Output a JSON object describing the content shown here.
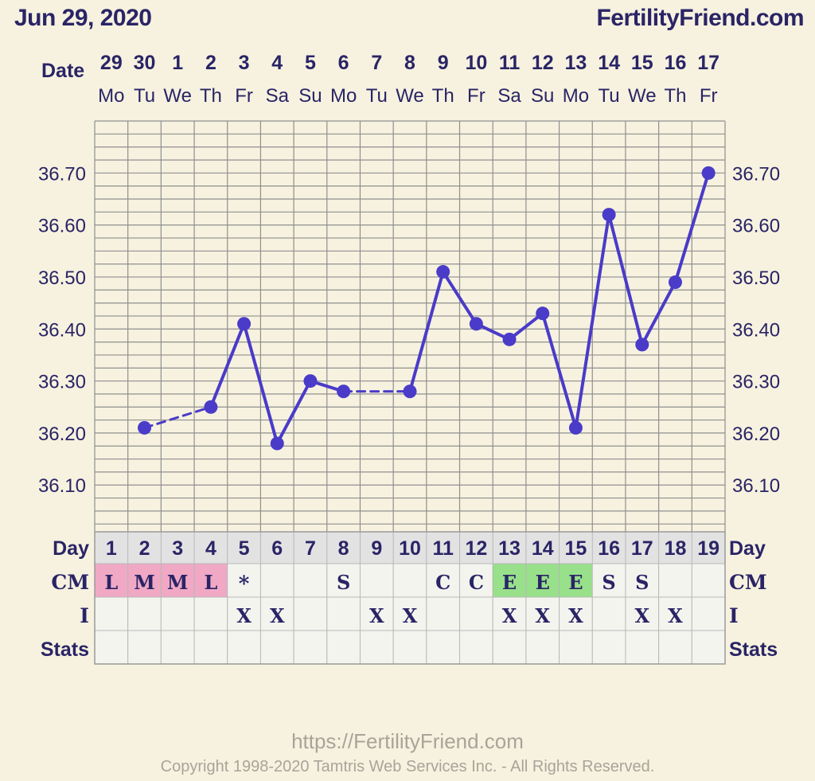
{
  "header": {
    "date_title": "Jun 29, 2020",
    "site_name": "FertilityFriend.com"
  },
  "footer": {
    "url": "https://FertilityFriend.com",
    "copyright": "Copyright 1998-2020 Tamtris Web Services Inc. - All Rights Reserved."
  },
  "colors": {
    "background": "#f6f2df",
    "grid": "#8f8f8f",
    "line": "#4a3bc8",
    "text": "#2a2466",
    "cm_menstrual": "#f0a8c4",
    "cm_eggwhite": "#98e08a"
  },
  "chart_data": {
    "type": "line",
    "title": "",
    "row_labels": {
      "date": "Date",
      "day": "Day",
      "cm": "CM",
      "i": "I",
      "stats": "Stats"
    },
    "dates": [
      "29",
      "30",
      "1",
      "2",
      "3",
      "4",
      "5",
      "6",
      "7",
      "8",
      "9",
      "10",
      "11",
      "12",
      "13",
      "14",
      "15",
      "16",
      "17"
    ],
    "weekdays": [
      "Mo",
      "Tu",
      "We",
      "Th",
      "Fr",
      "Sa",
      "Su",
      "Mo",
      "Tu",
      "We",
      "Th",
      "Fr",
      "Sa",
      "Su",
      "Mo",
      "Tu",
      "We",
      "Th",
      "Fr"
    ],
    "cycle_days": [
      "1",
      "2",
      "3",
      "4",
      "5",
      "6",
      "7",
      "8",
      "9",
      "10",
      "11",
      "12",
      "13",
      "14",
      "15",
      "16",
      "17",
      "18",
      "19"
    ],
    "y_ticks": [
      "36.70",
      "36.60",
      "36.50",
      "36.40",
      "36.30",
      "36.20",
      "36.10"
    ],
    "ylim": [
      36.01,
      36.8
    ],
    "temperatures": [
      null,
      36.21,
      null,
      36.25,
      36.41,
      36.18,
      36.3,
      36.28,
      null,
      36.28,
      36.51,
      36.41,
      36.38,
      36.43,
      36.21,
      36.62,
      36.37,
      36.49,
      36.7
    ],
    "cm": [
      "L",
      "M",
      "M",
      "L",
      "*",
      "",
      "",
      "S",
      "",
      "",
      "C",
      "C",
      "E",
      "E",
      "E",
      "S",
      "S",
      "",
      ""
    ],
    "cm_colors": [
      "menstrual",
      "menstrual",
      "menstrual",
      "menstrual",
      "",
      "",
      "",
      "",
      "",
      "",
      "",
      "",
      "eggwhite",
      "eggwhite",
      "eggwhite",
      "",
      "",
      "",
      ""
    ],
    "intercourse": [
      "",
      "",
      "",
      "",
      "X",
      "X",
      "",
      "",
      "X",
      "X",
      "",
      "",
      "X",
      "X",
      "X",
      "",
      "X",
      "X",
      ""
    ],
    "stats": [
      "",
      "",
      "",
      "",
      "",
      "",
      "",
      "",
      "",
      "",
      "",
      "",
      "",
      "",
      "",
      "",
      "",
      "",
      ""
    ]
  }
}
